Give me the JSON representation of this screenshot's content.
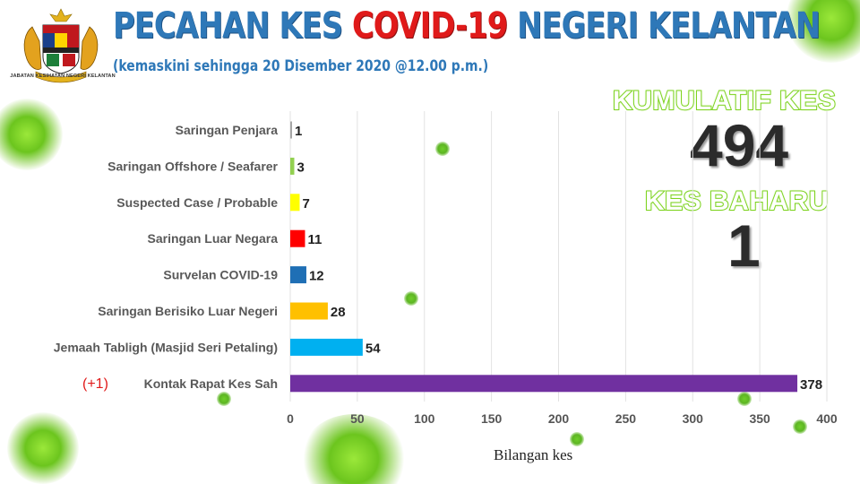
{
  "header": {
    "title_part1": "PECAHAN KES ",
    "title_highlight": "COVID-19",
    "title_part2": " NEGERI KELANTAN",
    "subtitle": "(kemaskini sehingga 20 Disember 2020 @12.00 p.m.)",
    "agency": "JABATAN KESIHATAN NEGERI KELANTAN"
  },
  "stats": {
    "cumulative_label": "KUMULATIF KES",
    "cumulative_value": "494",
    "new_label": "KES BAHARU",
    "new_value": "1"
  },
  "colors": {
    "title_blue": "#2e78b8",
    "title_red": "#e01a1a",
    "stat_green": "#7ed321",
    "change_red": "#e01a1a"
  },
  "chart_data": {
    "type": "bar",
    "orientation": "horizontal",
    "categories": [
      "Saringan Penjara",
      "Saringan Offshore / Seafarer",
      "Suspected Case / Probable",
      "Saringan Luar Negara",
      "Survelan COVID-19",
      "Saringan Berisiko Luar Negeri",
      "Jemaah Tabligh (Masjid Seri Petaling)",
      "Kontak Rapat Kes Sah"
    ],
    "values": [
      1,
      3,
      7,
      11,
      12,
      28,
      54,
      378
    ],
    "bar_colors": [
      "#a6a6a6",
      "#92d050",
      "#ffff00",
      "#ff0000",
      "#1f6fb5",
      "#ffc000",
      "#00b0f0",
      "#7030a0"
    ],
    "annotations": [
      {
        "category": "Kontak Rapat Kes Sah",
        "text": "(+1)"
      }
    ],
    "xlabel": "Bilangan kes",
    "xlim": [
      0,
      400
    ],
    "xticks": [
      0,
      50,
      100,
      150,
      200,
      250,
      300,
      350,
      400
    ],
    "grid": "vertical"
  }
}
